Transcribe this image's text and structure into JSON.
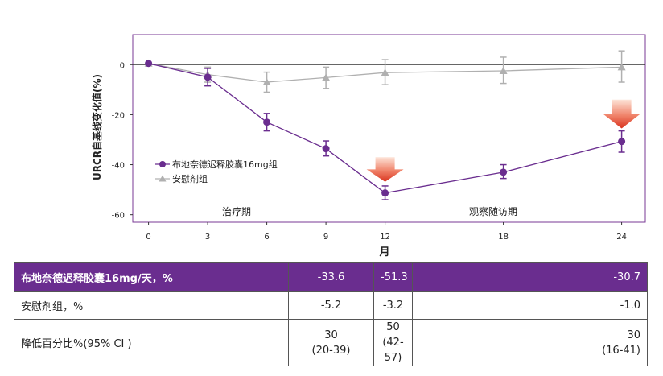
{
  "chart_data": {
    "type": "line",
    "ylabel": "URCR自基线变化值(%)",
    "xlabel": "月",
    "x": [
      0,
      3,
      6,
      9,
      12,
      18,
      24
    ],
    "xticks": [
      "0",
      "3",
      "6",
      "9",
      "12",
      "18",
      "24"
    ],
    "yticks": [
      "0",
      "-20",
      "-40",
      "-60"
    ],
    "ylim": [
      -63,
      12
    ],
    "xlim": [
      -0.8,
      25.2
    ],
    "grid": false,
    "legend_position": "middle-left",
    "series": [
      {
        "name": "布地奈德迟释胶囊16mg组",
        "color": "#6a2d8f",
        "values": [
          0.5,
          -5,
          -23,
          -33.6,
          -51.3,
          -43,
          -30.7
        ],
        "err_low": [
          0.5,
          -8.5,
          -26.5,
          -36.5,
          -54,
          -45.5,
          -35
        ],
        "err_high": [
          0.5,
          -1.5,
          -19.5,
          -30.5,
          -48.5,
          -40,
          -26.5
        ]
      },
      {
        "name": "安慰剂组",
        "color": "#b0b0b0",
        "values": [
          0.5,
          -4,
          -7,
          -5.2,
          -3.2,
          -2.5,
          -1
        ],
        "err_low": [
          0.5,
          -7,
          -11,
          -9.5,
          -8,
          -7.5,
          -7
        ],
        "err_high": [
          0.5,
          -1,
          -3,
          -1,
          2,
          3,
          5.5
        ]
      }
    ],
    "annotations": [
      {
        "text": "治疗期",
        "x": 5.7,
        "y": -58.5
      },
      {
        "text": "观察随访期",
        "x": 18.5,
        "y": -58.5
      }
    ],
    "arrows": [
      {
        "x": 12,
        "y_top": -37,
        "y_tip": -46.8
      },
      {
        "x": 24,
        "y_top": -14,
        "y_tip": -25.5
      }
    ]
  },
  "table": {
    "rows": [
      {
        "label": "布地奈德迟释胶囊16mg/天，%",
        "c1": "-33.6",
        "c2": "-51.3",
        "c3": "-30.7"
      },
      {
        "label": "安慰剂组，%",
        "c1": "-5.2",
        "c2": "-3.2",
        "c3": "-1.0"
      },
      {
        "label": "降低百分比%(95% CI )",
        "c1a": "30",
        "c1b": "(20-39)",
        "c2a": "50",
        "c2b": "(42-57)",
        "c3a": "30",
        "c3b": "(16-41)"
      }
    ]
  }
}
